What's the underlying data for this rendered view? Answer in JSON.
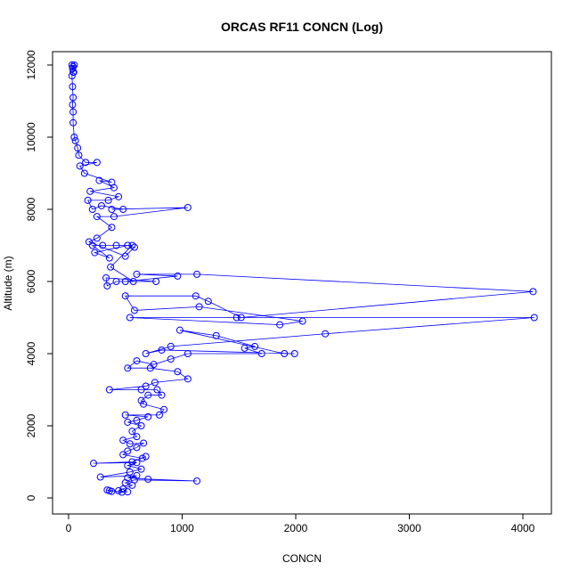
{
  "chart_data": {
    "type": "line",
    "title": "ORCAS RF11 CONCN (Log)",
    "x_label": "CONCN",
    "y_label": "Altitude (m)",
    "color": "#0000ff",
    "markers": true,
    "grid": false,
    "xlim": [
      -141,
      4251
    ],
    "ylim": [
      -444,
      12370
    ],
    "xticks": [
      0,
      1000,
      2000,
      3000,
      4000
    ],
    "yticks": [
      0,
      2000,
      4000,
      6000,
      8000,
      10000,
      12000
    ],
    "x": [
      360,
      380,
      340,
      470,
      520,
      440,
      480,
      560,
      500,
      580,
      1130,
      700,
      520,
      600,
      280,
      540,
      640,
      520,
      600,
      220,
      560,
      680,
      650,
      480,
      520,
      600,
      660,
      540,
      480,
      600,
      560,
      640,
      520,
      600,
      700,
      500,
      800,
      840,
      660,
      640,
      700,
      820,
      780,
      640,
      360,
      680,
      760,
      1050,
      960,
      720,
      520,
      600,
      750,
      900,
      1050,
      1700,
      1550,
      1640,
      1300,
      980,
      1900,
      1990,
      820,
      680,
      900,
      2260,
      4100,
      1480,
      540,
      1860,
      2060,
      1150,
      580,
      500,
      1120,
      1230,
      1520,
      4090,
      1130,
      600,
      960,
      500,
      770,
      330,
      340,
      420,
      570,
      370,
      560,
      300,
      420,
      210,
      360,
      230,
      520,
      580,
      500,
      180,
      250,
      380,
      250,
      400,
      1050,
      380,
      480,
      290,
      210,
      170,
      350,
      440,
      190,
      400,
      270,
      380,
      140,
      100,
      250,
      150,
      90,
      80,
      60,
      50,
      40,
      40,
      35,
      40,
      35,
      30,
      40,
      35,
      30,
      40,
      50,
      45
    ],
    "y": [
      200,
      180,
      220,
      160,
      170,
      200,
      250,
      350,
      420,
      500,
      470,
      520,
      560,
      620,
      580,
      720,
      800,
      900,
      980,
      960,
      1000,
      1150,
      1100,
      1200,
      1300,
      1400,
      1520,
      1500,
      1600,
      1700,
      1850,
      2000,
      2100,
      2150,
      2250,
      2300,
      2300,
      2450,
      2600,
      2700,
      2850,
      2850,
      3000,
      3000,
      3000,
      3100,
      3200,
      3300,
      3500,
      3600,
      3600,
      3800,
      3700,
      3850,
      4000,
      4000,
      4150,
      4200,
      4500,
      4650,
      4000,
      4000,
      4100,
      4000,
      4200,
      4550,
      5000,
      5000,
      5000,
      4800,
      4900,
      5300,
      5200,
      5600,
      5600,
      5450,
      5000,
      5720,
      6200,
      6200,
      6150,
      6000,
      6000,
      6100,
      5880,
      6000,
      6000,
      6400,
      7000,
      7000,
      7000,
      7000,
      6650,
      6800,
      7000,
      6950,
      6700,
      7100,
      7200,
      7500,
      7800,
      7800,
      8050,
      8000,
      8000,
      8100,
      8000,
      8250,
      8250,
      8350,
      8500,
      8600,
      8800,
      8750,
      9000,
      9200,
      9300,
      9300,
      9500,
      9700,
      9900,
      10000,
      10400,
      10700,
      10900,
      11100,
      11400,
      11700,
      11800,
      11900,
      12000,
      11950,
      12000,
      11800
    ]
  }
}
